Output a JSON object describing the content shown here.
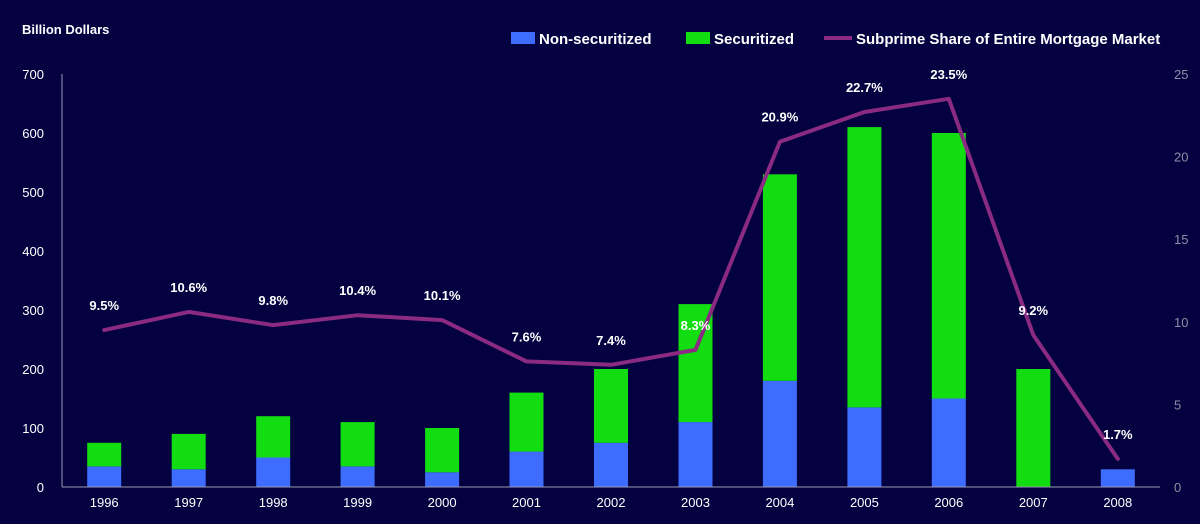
{
  "chart_data": {
    "type": "bar",
    "stacked": true,
    "ylabel": "Billion Dollars",
    "categories": [
      "1996",
      "1997",
      "1998",
      "1999",
      "2000",
      "2001",
      "2002",
      "2003",
      "2004",
      "2005",
      "2006",
      "2007",
      "2008"
    ],
    "series": [
      {
        "name": "Non-securitized",
        "color": "#3e6cff",
        "values": [
          35,
          30,
          50,
          35,
          25,
          60,
          75,
          110,
          180,
          135,
          150,
          0,
          30
        ]
      },
      {
        "name": "Securitized",
        "color": "#11dd11",
        "values": [
          40,
          60,
          70,
          75,
          75,
          100,
          125,
          200,
          350,
          475,
          450,
          200,
          0
        ]
      }
    ],
    "line_series": {
      "name": "Subprime Share of Entire Mortgage Market",
      "color": "#8a2a82",
      "values": [
        9.5,
        10.6,
        9.8,
        10.4,
        10.1,
        7.6,
        7.4,
        8.3,
        20.9,
        22.7,
        23.5,
        9.2,
        1.7
      ],
      "labels": [
        "9.5%",
        "10.6%",
        "9.8%",
        "10.4%",
        "10.1%",
        "7.6%",
        "7.4%",
        "8.3%",
        "20.9%",
        "22.7%",
        "23.5%",
        "9.2%",
        "1.7%"
      ]
    },
    "ylim": [
      0,
      700
    ],
    "yticks": [
      "0",
      "100",
      "200",
      "300",
      "400",
      "500",
      "600",
      "700"
    ],
    "y2lim": [
      0,
      25
    ],
    "y2ticks": [
      "0",
      "5",
      "10",
      "15",
      "20",
      "25"
    ],
    "legend_position": "top-right",
    "grid": false
  }
}
